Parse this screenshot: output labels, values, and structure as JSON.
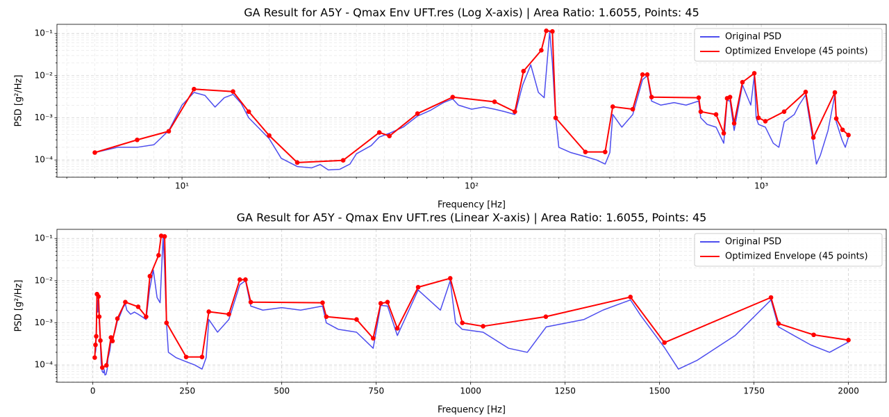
{
  "chart_data": [
    {
      "type": "line",
      "title": "GA Result for A5Y - Qmax Env UFT.res (Log X-axis) | Area Ratio: 1.6055, Points: 45",
      "xlabel": "Frequency [Hz]",
      "ylabel": "PSD [g²/Hz]",
      "xscale": "log",
      "yscale": "log",
      "xlim": [
        3.7,
        2700
      ],
      "ylim": [
        3.9e-05,
        0.165
      ],
      "xticks": [
        {
          "value": 10,
          "label": "10¹"
        },
        {
          "value": 100,
          "label": "10²"
        },
        {
          "value": 1000,
          "label": "10³"
        }
      ],
      "xminor": [
        4,
        5,
        6,
        7,
        8,
        9,
        20,
        30,
        40,
        50,
        60,
        70,
        80,
        90,
        200,
        300,
        400,
        500,
        600,
        700,
        800,
        900,
        2000
      ],
      "yticks": [
        {
          "value": 0.0001,
          "label": "10⁻⁴"
        },
        {
          "value": 0.001,
          "label": "10⁻³"
        },
        {
          "value": 0.01,
          "label": "10⁻²"
        },
        {
          "value": 0.1,
          "label": "10⁻¹"
        }
      ],
      "yminor": [
        4e-05,
        5e-05,
        6e-05,
        7e-05,
        8e-05,
        9e-05,
        0.0002,
        0.0003,
        0.0004,
        0.0005,
        0.0006,
        0.0007,
        0.0008,
        0.0009,
        0.002,
        0.003,
        0.004,
        0.005,
        0.006,
        0.007,
        0.008,
        0.009,
        0.02,
        0.03,
        0.04,
        0.05,
        0.06,
        0.07,
        0.08,
        0.09
      ],
      "grid": true,
      "legend": "upper right",
      "series": [
        {
          "name": "Original PSD",
          "color": "#4d4dee",
          "x": [
            5,
            6,
            7,
            8,
            9,
            10,
            11,
            12,
            13,
            14,
            15,
            16,
            17,
            20,
            22,
            25,
            28,
            30,
            32,
            35,
            38,
            40,
            45,
            48,
            52,
            58,
            65,
            72,
            80,
            86,
            90,
            100,
            110,
            120,
            130,
            141,
            150,
            160,
            170,
            178,
            183,
            186,
            190,
            195,
            200,
            220,
            247,
            270,
            289,
            300,
            307,
            330,
            360,
            389,
            404,
            418,
            450,
            500,
            550,
            608,
            618,
            650,
            698,
            742,
            762,
            780,
            806,
            861,
            920,
            946,
            960,
            978,
            1033,
            1100,
            1150,
            1200,
            1300,
            1350,
            1423,
            1450,
            1513,
            1550,
            1600,
            1700,
            1795,
            1815,
            1900,
            1950,
            2000
          ],
          "values": [
            0.00015,
            0.0002,
            0.0002,
            0.00023,
            0.0005,
            0.002,
            0.004,
            0.0034,
            0.0018,
            0.003,
            0.0036,
            0.0022,
            0.001,
            0.00032,
            0.00011,
            7e-05,
            6.5e-05,
            7.8e-05,
            5.8e-05,
            6e-05,
            8e-05,
            0.00014,
            0.00022,
            0.00035,
            0.00043,
            0.0006,
            0.0011,
            0.0015,
            0.0023,
            0.0028,
            0.002,
            0.0016,
            0.0018,
            0.0016,
            0.0014,
            0.0012,
            0.006,
            0.018,
            0.004,
            0.003,
            0.03,
            0.11,
            0.02,
            0.001,
            0.0002,
            0.00015,
            0.00012,
            0.0001,
            8e-05,
            0.00015,
            0.0012,
            0.0006,
            0.0012,
            0.008,
            0.01,
            0.0025,
            0.002,
            0.0023,
            0.002,
            0.0025,
            0.001,
            0.0007,
            0.0006,
            0.00025,
            0.0026,
            0.0025,
            0.0005,
            0.006,
            0.002,
            0.01,
            0.001,
            0.0007,
            0.0006,
            0.00025,
            0.0002,
            0.0008,
            0.0012,
            0.002,
            0.0035,
            0.0015,
            0.00026,
            8e-05,
            0.00013,
            0.0005,
            0.0035,
            0.0008,
            0.0003,
            0.0002,
            0.00035
          ]
        },
        {
          "name": "Optimized Envelope (45 points)",
          "color": "#ff0000",
          "marker": "o",
          "x": [
            5,
            7,
            9,
            11,
            15,
            17,
            20,
            25,
            36,
            48,
            52,
            65,
            86,
            120,
            141,
            151,
            174,
            181,
            190,
            195,
            247,
            289,
            307,
            360,
            389,
            404,
            418,
            608,
            618,
            698,
            742,
            762,
            780,
            806,
            861,
            946,
            978,
            1033,
            1199,
            1423,
            1513,
            1795,
            1815,
            1908,
            2000
          ],
          "values": [
            0.00015,
            0.0003,
            0.00048,
            0.0048,
            0.0042,
            0.0014,
            0.00038,
            8.7e-05,
            9.8e-05,
            0.00045,
            0.00037,
            0.00126,
            0.0031,
            0.0024,
            0.0014,
            0.0128,
            0.04,
            0.116,
            0.112,
            0.001,
            0.000155,
            0.000155,
            0.00184,
            0.0016,
            0.0106,
            0.0106,
            0.0031,
            0.003,
            0.0014,
            0.0012,
            0.00043,
            0.0029,
            0.0031,
            0.00074,
            0.007,
            0.0114,
            0.001,
            0.00083,
            0.0014,
            0.0041,
            0.00034,
            0.004,
            0.00096,
            0.00052,
            0.00039
          ]
        }
      ]
    },
    {
      "type": "line",
      "title": "GA Result for A5Y - Qmax Env UFT.res (Linear X-axis) | Area Ratio: 1.6055, Points: 45",
      "xlabel": "Frequency [Hz]",
      "ylabel": "PSD [g²/Hz]",
      "xscale": "linear",
      "yscale": "log",
      "xlim": [
        -95,
        2100
      ],
      "ylim": [
        3.9e-05,
        0.165
      ],
      "xticks": [
        0,
        250,
        500,
        750,
        1000,
        1250,
        1500,
        1750,
        2000
      ],
      "yticks": [
        {
          "value": 0.0001,
          "label": "10⁻⁴"
        },
        {
          "value": 0.001,
          "label": "10⁻³"
        },
        {
          "value": 0.01,
          "label": "10⁻²"
        },
        {
          "value": 0.1,
          "label": "10⁻¹"
        }
      ],
      "yminor": [
        4e-05,
        5e-05,
        6e-05,
        7e-05,
        8e-05,
        9e-05,
        0.0002,
        0.0003,
        0.0004,
        0.0005,
        0.0006,
        0.0007,
        0.0008,
        0.0009,
        0.002,
        0.003,
        0.004,
        0.005,
        0.006,
        0.007,
        0.008,
        0.009,
        0.02,
        0.03,
        0.04,
        0.05,
        0.06,
        0.07,
        0.08,
        0.09
      ],
      "grid": true,
      "legend": "upper right",
      "series": [
        {
          "name": "Original PSD",
          "color": "#4d4dee",
          "x": [
            5,
            6,
            7,
            8,
            9,
            10,
            11,
            12,
            13,
            14,
            15,
            16,
            17,
            20,
            22,
            25,
            28,
            30,
            32,
            35,
            38,
            40,
            45,
            48,
            52,
            58,
            65,
            72,
            80,
            86,
            90,
            100,
            110,
            120,
            130,
            141,
            150,
            160,
            170,
            178,
            183,
            186,
            190,
            195,
            200,
            220,
            247,
            270,
            289,
            300,
            307,
            330,
            360,
            389,
            404,
            418,
            450,
            500,
            550,
            608,
            618,
            650,
            698,
            742,
            762,
            780,
            806,
            861,
            920,
            946,
            960,
            978,
            1033,
            1100,
            1150,
            1200,
            1300,
            1350,
            1423,
            1450,
            1513,
            1550,
            1600,
            1700,
            1795,
            1815,
            1900,
            1950,
            2000
          ],
          "values": [
            0.00015,
            0.0002,
            0.0002,
            0.00023,
            0.0005,
            0.002,
            0.004,
            0.0034,
            0.0018,
            0.003,
            0.0036,
            0.0022,
            0.001,
            0.00032,
            0.00011,
            7e-05,
            6.5e-05,
            7.8e-05,
            5.8e-05,
            6e-05,
            8e-05,
            0.00014,
            0.00022,
            0.00035,
            0.00043,
            0.0006,
            0.0011,
            0.0015,
            0.0023,
            0.0028,
            0.002,
            0.0016,
            0.0018,
            0.0016,
            0.0014,
            0.0012,
            0.006,
            0.018,
            0.004,
            0.003,
            0.03,
            0.11,
            0.02,
            0.001,
            0.0002,
            0.00015,
            0.00012,
            0.0001,
            8e-05,
            0.00015,
            0.0012,
            0.0006,
            0.0012,
            0.008,
            0.01,
            0.0025,
            0.002,
            0.0023,
            0.002,
            0.0025,
            0.001,
            0.0007,
            0.0006,
            0.00025,
            0.0026,
            0.0025,
            0.0005,
            0.006,
            0.002,
            0.01,
            0.001,
            0.0007,
            0.0006,
            0.00025,
            0.0002,
            0.0008,
            0.0012,
            0.002,
            0.0035,
            0.0015,
            0.00026,
            8e-05,
            0.00013,
            0.0005,
            0.0035,
            0.0008,
            0.0003,
            0.0002,
            0.00035
          ]
        },
        {
          "name": "Optimized Envelope (45 points)",
          "color": "#ff0000",
          "marker": "o",
          "x": [
            5,
            7,
            9,
            11,
            15,
            17,
            20,
            25,
            36,
            48,
            52,
            65,
            86,
            120,
            141,
            151,
            174,
            181,
            190,
            195,
            247,
            289,
            307,
            360,
            389,
            404,
            418,
            608,
            618,
            698,
            742,
            762,
            780,
            806,
            861,
            946,
            978,
            1033,
            1199,
            1423,
            1513,
            1795,
            1815,
            1908,
            2000
          ],
          "values": [
            0.00015,
            0.0003,
            0.00048,
            0.0048,
            0.0042,
            0.0014,
            0.00038,
            8.7e-05,
            9.8e-05,
            0.00045,
            0.00037,
            0.00126,
            0.0031,
            0.0024,
            0.0014,
            0.0128,
            0.04,
            0.116,
            0.112,
            0.001,
            0.000155,
            0.000155,
            0.00184,
            0.0016,
            0.0106,
            0.0106,
            0.0031,
            0.003,
            0.0014,
            0.0012,
            0.00043,
            0.0029,
            0.0031,
            0.00074,
            0.007,
            0.0114,
            0.001,
            0.00083,
            0.0014,
            0.0041,
            0.00034,
            0.004,
            0.00096,
            0.00052,
            0.00039
          ]
        }
      ]
    }
  ]
}
